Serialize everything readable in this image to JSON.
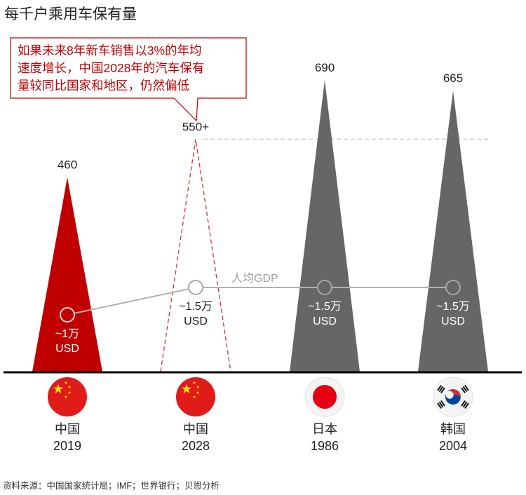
{
  "title": "每千户乘用车保有量",
  "callout": {
    "lines": [
      "如果未来8年新车销售以3%的年均",
      "速度增长，中国2028年的汽车保有",
      "量较同比国家和地区，仍然偏低"
    ]
  },
  "source": "资料来源：中国国家统计局；IMF；世界银行；贝恩分析",
  "colors": {
    "china": "#c00000",
    "china_projection": "#d32f2f",
    "comparison": "#666666",
    "gdp_line": "#b0b0b0",
    "baseline": "#000000"
  },
  "chart_data": {
    "type": "bar",
    "title": "每千户乘用车保有量",
    "ylim": [
      0,
      700
    ],
    "categories": [
      "中国 2019",
      "中国 2028",
      "日本 1986",
      "韩国 2004"
    ],
    "series": [
      {
        "name": "每千户乘用车保有量",
        "values": [
          460,
          550,
          690,
          665
        ],
        "value_labels": [
          "460",
          "550+",
          "690",
          "665"
        ]
      }
    ],
    "projection_index": 1,
    "items": [
      {
        "country": "中国",
        "year": "2019",
        "flag": "china-flag-icon",
        "gdp_label": [
          "~1万",
          "USD"
        ],
        "style": "solid-red"
      },
      {
        "country": "中国",
        "year": "2028",
        "flag": "china-flag-icon",
        "gdp_label": [
          "~1.5万",
          "USD"
        ],
        "style": "dashed-red"
      },
      {
        "country": "日本",
        "year": "1986",
        "flag": "japan-flag-icon",
        "gdp_label": [
          "~1.5万",
          "USD"
        ],
        "style": "solid-gray"
      },
      {
        "country": "韩国",
        "year": "2004",
        "flag": "korea-flag-icon",
        "gdp_label": [
          "~1.5万",
          "USD"
        ],
        "style": "solid-gray"
      }
    ],
    "gdp_series": {
      "name": "人均GDP",
      "unit": "万USD",
      "values": [
        1,
        1.5,
        1.5,
        1.5
      ],
      "ylim": [
        0.5,
        2.5
      ]
    }
  }
}
